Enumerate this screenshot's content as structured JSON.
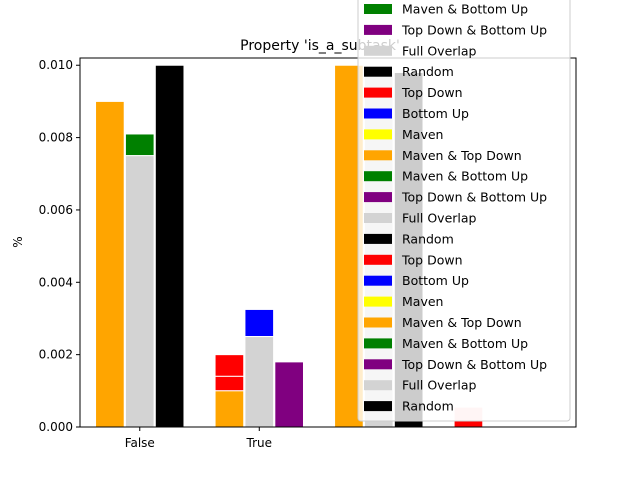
{
  "chart_data": {
    "type": "bar",
    "title": "Property 'is_a_subtask'",
    "xlabel": "",
    "ylabel": "%",
    "categories": [
      "False",
      "True"
    ],
    "ylim": [
      0,
      0.0102
    ],
    "yticks": [
      "0.000",
      "0.002",
      "0.004",
      "0.006",
      "0.008",
      "0.010"
    ],
    "grid": false,
    "legend_position": "top-right",
    "series_colors": {
      "Top Down": "#ff0000",
      "Bottom Up": "#0000ff",
      "Maven": "#ffff00",
      "Maven & Top Down": "#ffa500",
      "Maven & Bottom Up": "#008000",
      "Top Down & Bottom Up": "#800080",
      "Full Overlap": "#d3d3d3",
      "Random": "#000000"
    },
    "bars": [
      {
        "x": -0.25,
        "bottom": 0,
        "height": 0.009,
        "series": "Maven & Top Down"
      },
      {
        "x": 0.0,
        "bottom": 0.0075,
        "height": 0.0006,
        "series": "Maven & Bottom Up"
      },
      {
        "x": 0.0,
        "bottom": 0,
        "height": 0.0075,
        "series": "Full Overlap"
      },
      {
        "x": 0.25,
        "bottom": 0,
        "height": 0.01,
        "series": "Random"
      },
      {
        "x": 0.75,
        "bottom": 0.0014,
        "height": 0.0006,
        "series": "Top Down"
      },
      {
        "x": 0.75,
        "bottom": 0.001,
        "height": 0.0004,
        "series": "Top Down"
      },
      {
        "x": 0.75,
        "bottom": 0,
        "height": 0.001,
        "series": "Maven & Top Down"
      },
      {
        "x": 1.0,
        "bottom": 0.0025,
        "height": 0.00075,
        "series": "Bottom Up"
      },
      {
        "x": 1.0,
        "bottom": 0,
        "height": 0.0025,
        "series": "Full Overlap"
      },
      {
        "x": 1.25,
        "bottom": 0,
        "height": 0.0018,
        "series": "Top Down & Bottom Up"
      },
      {
        "x": 1.75,
        "bottom": 0,
        "height": 0.01,
        "series": "Maven & Top Down"
      },
      {
        "x": 2.0,
        "bottom": 0,
        "height": 0.0098,
        "series": "Full Overlap"
      },
      {
        "x": 2.25,
        "bottom": 0,
        "height": 0.0098,
        "series": "Random"
      },
      {
        "x": 2.75,
        "bottom": 0.00018,
        "height": 0.00037,
        "series": "Top Down",
        "faded": true
      },
      {
        "x": 2.75,
        "bottom": 0,
        "height": 0.00018,
        "series": "Top Down"
      }
    ],
    "legend_entries": [
      {
        "label": "Maven & Bottom Up",
        "color": "#008000"
      },
      {
        "label": "Top Down & Bottom Up",
        "color": "#800080"
      },
      {
        "label": "Full Overlap",
        "color": "#d3d3d3"
      },
      {
        "label": "Random",
        "color": "#000000"
      },
      {
        "label": "Top Down",
        "color": "#ff0000"
      },
      {
        "label": "Bottom Up",
        "color": "#0000ff"
      },
      {
        "label": "Maven",
        "color": "#ffff00"
      },
      {
        "label": "Maven & Top Down",
        "color": "#ffa500"
      },
      {
        "label": "Maven & Bottom Up",
        "color": "#008000"
      },
      {
        "label": "Top Down & Bottom Up",
        "color": "#800080"
      },
      {
        "label": "Full Overlap",
        "color": "#d3d3d3"
      },
      {
        "label": "Random",
        "color": "#000000"
      },
      {
        "label": "Top Down",
        "color": "#ff0000"
      },
      {
        "label": "Bottom Up",
        "color": "#0000ff"
      },
      {
        "label": "Maven",
        "color": "#ffff00"
      },
      {
        "label": "Maven & Top Down",
        "color": "#ffa500"
      },
      {
        "label": "Maven & Bottom Up",
        "color": "#008000"
      },
      {
        "label": "Top Down & Bottom Up",
        "color": "#800080"
      },
      {
        "label": "Full Overlap",
        "color": "#d3d3d3"
      },
      {
        "label": "Random",
        "color": "#000000"
      }
    ]
  }
}
